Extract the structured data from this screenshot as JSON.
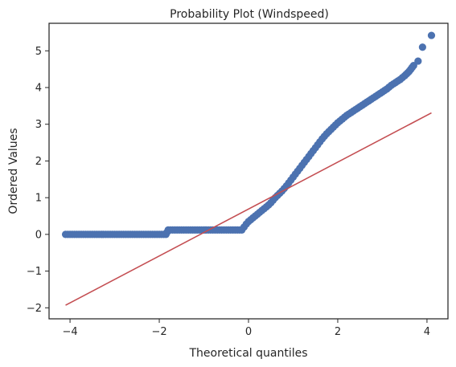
{
  "chart_data": {
    "type": "scatter",
    "title": "Probability Plot (Windspeed)",
    "xlabel": "Theoretical quantiles",
    "ylabel": "Ordered Values",
    "xlim": [
      -4.47,
      4.47
    ],
    "ylim": [
      -2.3,
      5.75
    ],
    "xticks": [
      -4,
      -2,
      0,
      2,
      4
    ],
    "xtick_labels": [
      "−4",
      "−2",
      "0",
      "2",
      "4"
    ],
    "yticks": [
      -2,
      -1,
      0,
      1,
      2,
      3,
      4,
      5
    ],
    "ytick_labels": [
      "−2",
      "−1",
      "0",
      "1",
      "2",
      "3",
      "4",
      "5"
    ],
    "grid": false,
    "colors": {
      "points": "#4c72b0",
      "fit_line": "#c44e52",
      "frame": "#262626"
    },
    "series": [
      {
        "kind": "points",
        "x": [
          -4.1,
          -3.9,
          -3.8,
          -3.7,
          -3.6,
          -3.5,
          -3.4,
          -3.3,
          -3.2,
          -3.1,
          -3.0,
          -2.9,
          -2.8,
          -2.7,
          -2.6,
          -2.5,
          -2.4,
          -2.3,
          -2.2,
          -2.1,
          -2.0,
          -1.95,
          -1.9,
          -1.85,
          -1.8,
          -1.7,
          -1.6,
          -1.5,
          -1.4,
          -1.3,
          -1.2,
          -1.1,
          -1.0,
          -0.9,
          -0.8,
          -0.7,
          -0.6,
          -0.5,
          -0.4,
          -0.3,
          -0.2,
          -0.15,
          -0.1,
          -0.05,
          0.0,
          0.05,
          0.1,
          0.15,
          0.2,
          0.25,
          0.3,
          0.35,
          0.4,
          0.45,
          0.5,
          0.55,
          0.6,
          0.65,
          0.7,
          0.75,
          0.8,
          0.85,
          0.9,
          0.95,
          1.0,
          1.05,
          1.1,
          1.15,
          1.2,
          1.25,
          1.3,
          1.35,
          1.4,
          1.45,
          1.5,
          1.55,
          1.6,
          1.65,
          1.7,
          1.75,
          1.8,
          1.85,
          1.9,
          1.95,
          2.0,
          2.1,
          2.2,
          2.3,
          2.4,
          2.5,
          2.6,
          2.7,
          2.8,
          2.9,
          3.0,
          3.1,
          3.2,
          3.3,
          3.4,
          3.5,
          3.6,
          3.7,
          3.8,
          3.9,
          4.1
        ],
        "y": [
          0.0,
          0.0,
          0.0,
          0.0,
          0.0,
          0.0,
          0.0,
          0.0,
          0.0,
          0.0,
          0.0,
          0.0,
          0.0,
          0.0,
          0.0,
          0.0,
          0.0,
          0.0,
          0.0,
          0.0,
          0.0,
          0.0,
          0.0,
          0.0,
          0.12,
          0.12,
          0.12,
          0.12,
          0.12,
          0.12,
          0.12,
          0.12,
          0.12,
          0.12,
          0.12,
          0.12,
          0.12,
          0.12,
          0.12,
          0.12,
          0.12,
          0.12,
          0.2,
          0.28,
          0.35,
          0.4,
          0.45,
          0.5,
          0.55,
          0.6,
          0.65,
          0.7,
          0.75,
          0.8,
          0.86,
          0.93,
          1.0,
          1.06,
          1.12,
          1.18,
          1.25,
          1.32,
          1.4,
          1.48,
          1.56,
          1.64,
          1.72,
          1.8,
          1.88,
          1.96,
          2.04,
          2.12,
          2.2,
          2.28,
          2.36,
          2.44,
          2.52,
          2.6,
          2.67,
          2.74,
          2.8,
          2.86,
          2.92,
          2.98,
          3.04,
          3.14,
          3.24,
          3.32,
          3.4,
          3.48,
          3.56,
          3.64,
          3.72,
          3.8,
          3.88,
          3.96,
          4.06,
          4.14,
          4.22,
          4.32,
          4.44,
          4.6,
          4.72,
          5.1,
          5.42
        ]
      },
      {
        "kind": "fit-line",
        "x": [
          -4.1,
          4.1
        ],
        "y": [
          -1.93,
          3.31
        ]
      }
    ]
  }
}
